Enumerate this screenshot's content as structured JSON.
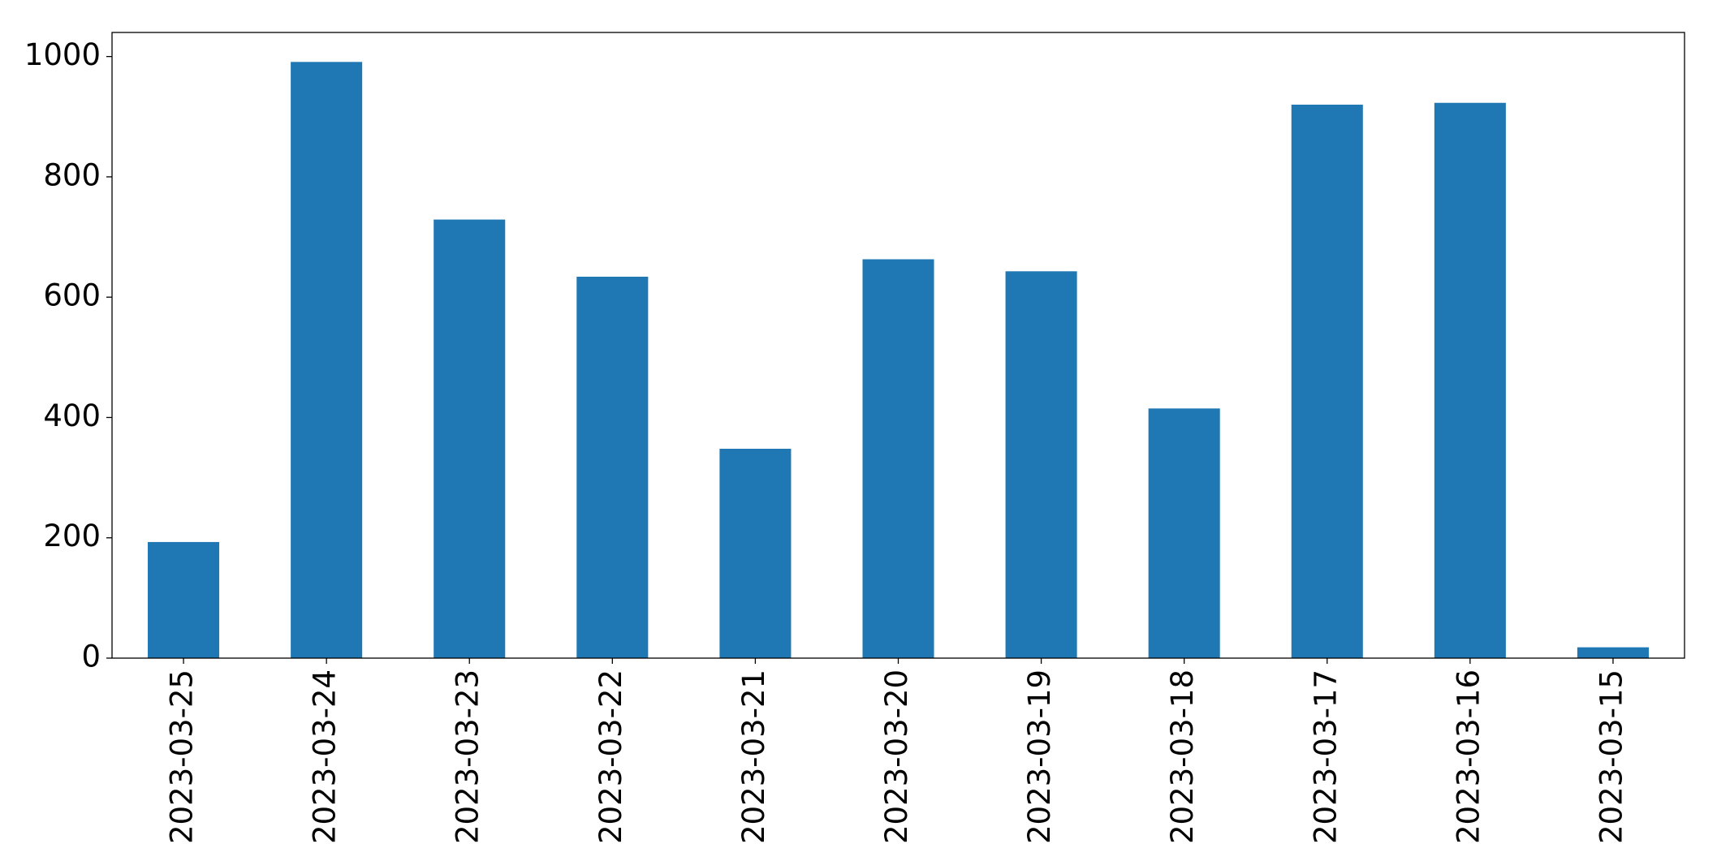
{
  "chart_data": {
    "type": "bar",
    "categories": [
      "2023-03-25",
      "2023-03-24",
      "2023-03-23",
      "2023-03-22",
      "2023-03-21",
      "2023-03-20",
      "2023-03-19",
      "2023-03-18",
      "2023-03-17",
      "2023-03-16",
      "2023-03-15"
    ],
    "values": [
      193,
      991,
      729,
      634,
      348,
      663,
      643,
      415,
      920,
      923,
      18
    ],
    "color": "#1f77b4",
    "ylim": [
      0,
      1040
    ],
    "yticks": [
      0,
      200,
      400,
      600,
      800,
      1000
    ],
    "grid": false
  }
}
